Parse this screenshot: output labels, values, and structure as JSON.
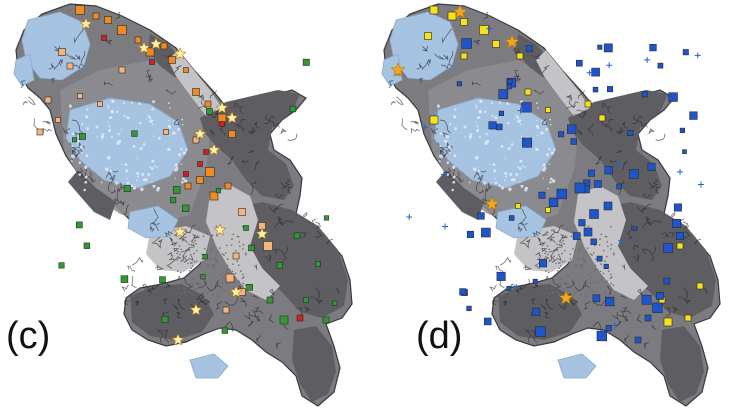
{
  "panels": [
    {
      "id": "c",
      "label": "(c)"
    },
    {
      "id": "d",
      "label": "(d)"
    }
  ],
  "colors": {
    "water": "#a6c3e2",
    "water_edge": "#8aaad0",
    "relief_dark": "#5e5e62",
    "relief_mid": "#7b7b80",
    "relief_light": "#c4c4c6",
    "background": "#ffffff",
    "marker_c_orange": "#f08a24",
    "marker_c_peach": "#f7b47c",
    "marker_c_red": "#d12020",
    "marker_c_green": "#2f9a2f",
    "marker_c_star": "#fff2a8",
    "marker_d_yellow": "#f4e21a",
    "marker_d_blue": "#1f55cc",
    "marker_d_star": "#f3a61a"
  },
  "icons": {
    "square_marker": "square",
    "star_marker": "star-icon",
    "plus_marker": "plus-icon",
    "circle_marker": "circle-icon"
  }
}
